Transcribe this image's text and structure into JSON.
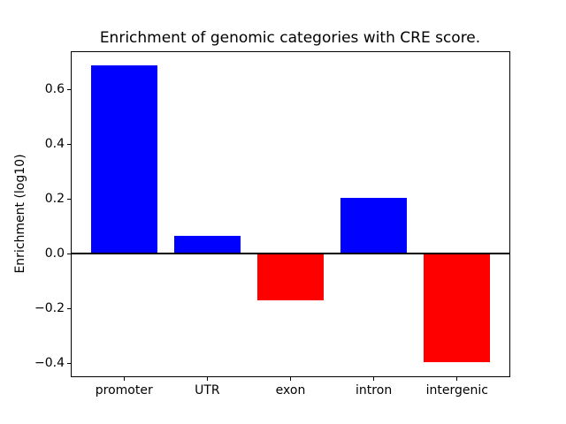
{
  "chart_data": {
    "type": "bar",
    "title": "Enrichment of genomic categories with CRE score.",
    "xlabel": "",
    "ylabel": "Enrichment (log10)",
    "categories": [
      "promoter",
      "UTR",
      "exon",
      "intron",
      "intergenic"
    ],
    "values": [
      0.69,
      0.065,
      -0.17,
      0.205,
      -0.395
    ],
    "bar_colors": [
      "#0000ff",
      "#0000ff",
      "#ff0000",
      "#0000ff",
      "#ff0000"
    ],
    "positive_color": "#0000ff",
    "negative_color": "#ff0000",
    "ylim": [
      -0.45,
      0.74
    ],
    "yticks": [
      0.6,
      0.4,
      0.2,
      0.0,
      -0.2,
      -0.4
    ],
    "ytick_labels": [
      "0.6",
      "0.4",
      "0.2",
      "0.0",
      "−0.2",
      "−0.4"
    ],
    "bar_width_fraction": 0.8,
    "grid": false,
    "legend": null,
    "zero_line": true,
    "axis_color": "#000000",
    "background_color": "#ffffff"
  }
}
